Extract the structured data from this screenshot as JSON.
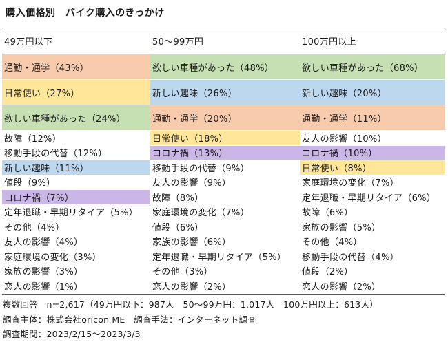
{
  "title": "購入価格別　バイク購入のきっかけ",
  "headers": [
    "49万円以下",
    "50〜99万円",
    "100万円以上"
  ],
  "colors": {
    "commute": "#f8cbad",
    "hobby": "#bdd7ee",
    "desired": "#c6e0b4",
    "daily": "#ffe699",
    "corona": "#cbb6e8",
    "none": "#ffffff"
  },
  "rows": [
    [
      {
        "t": "通勤・通学（43%）",
        "c": "commute"
      },
      {
        "t": "欲しい車種があった（48%）",
        "c": "desired"
      },
      {
        "t": "欲しい車種があった（68%）",
        "c": "desired"
      }
    ],
    [
      {
        "t": "日常使い（27%）",
        "c": "daily"
      },
      {
        "t": "新しい趣味（26%）",
        "c": "hobby"
      },
      {
        "t": "新しい趣味（20%）",
        "c": "hobby"
      }
    ],
    [
      {
        "t": "欲しい車種があった（24%）",
        "c": "desired"
      },
      {
        "t": "通勤・通学（20%）",
        "c": "commute"
      },
      {
        "t": "通勤・通学（11%）",
        "c": "commute"
      }
    ],
    [
      {
        "t": "故障（12%）",
        "c": "none"
      },
      {
        "t": "日常使い（18%）",
        "c": "daily"
      },
      {
        "t": "友人の影響（10%）",
        "c": "none"
      }
    ],
    [
      {
        "t": "移動手段の代替（12%）",
        "c": "none"
      },
      {
        "t": "コロナ禍（13%）",
        "c": "corona"
      },
      {
        "t": "コロナ禍（10%）",
        "c": "corona"
      }
    ],
    [
      {
        "t": "新しい趣味（11%）",
        "c": "hobby"
      },
      {
        "t": "移動手段の代替（9%）",
        "c": "none"
      },
      {
        "t": "日常使い（8%）",
        "c": "daily"
      }
    ],
    [
      {
        "t": "値段（9%）",
        "c": "none"
      },
      {
        "t": "友人の影響（9%）",
        "c": "none"
      },
      {
        "t": "家庭環境の変化（7%）",
        "c": "none"
      }
    ],
    [
      {
        "t": "コロナ禍（7%）",
        "c": "corona"
      },
      {
        "t": "故障（8%）",
        "c": "none"
      },
      {
        "t": "定年退職・早期リタイア（6%）",
        "c": "none"
      }
    ],
    [
      {
        "t": "定年退職・早期リタイア（5%）",
        "c": "none"
      },
      {
        "t": "家庭環境の変化（7%）",
        "c": "none"
      },
      {
        "t": "故障（6%）",
        "c": "none"
      }
    ],
    [
      {
        "t": "その他（4%）",
        "c": "none"
      },
      {
        "t": "値段（6%）",
        "c": "none"
      },
      {
        "t": "家族の影響（5%）",
        "c": "none"
      }
    ],
    [
      {
        "t": "友人の影響（4%）",
        "c": "none"
      },
      {
        "t": "家族の影響（6%）",
        "c": "none"
      },
      {
        "t": "その他（4%）",
        "c": "none"
      }
    ],
    [
      {
        "t": "家庭環境の変化（3%）",
        "c": "none"
      },
      {
        "t": "定年退職・早期リタイア（5%）",
        "c": "none"
      },
      {
        "t": "移動手段の代替（4%）",
        "c": "none"
      }
    ],
    [
      {
        "t": "家族の影響（3%）",
        "c": "none"
      },
      {
        "t": "その他（3%）",
        "c": "none"
      },
      {
        "t": "値段（2%）",
        "c": "none"
      }
    ],
    [
      {
        "t": "恋人の影響（1%）",
        "c": "none"
      },
      {
        "t": "恋人の影響（2%）",
        "c": "none"
      },
      {
        "t": "恋人の影響（2%）",
        "c": "none"
      }
    ]
  ],
  "notes": [
    "複数回答　n=2,617（49万円以下：987人　50〜99万円：1,017人　100万円以上：613人）",
    "調査主体：株式会社oricon ME　調査手法：インターネット調査",
    "調査期間：2023/2/15〜2023/3/3"
  ]
}
